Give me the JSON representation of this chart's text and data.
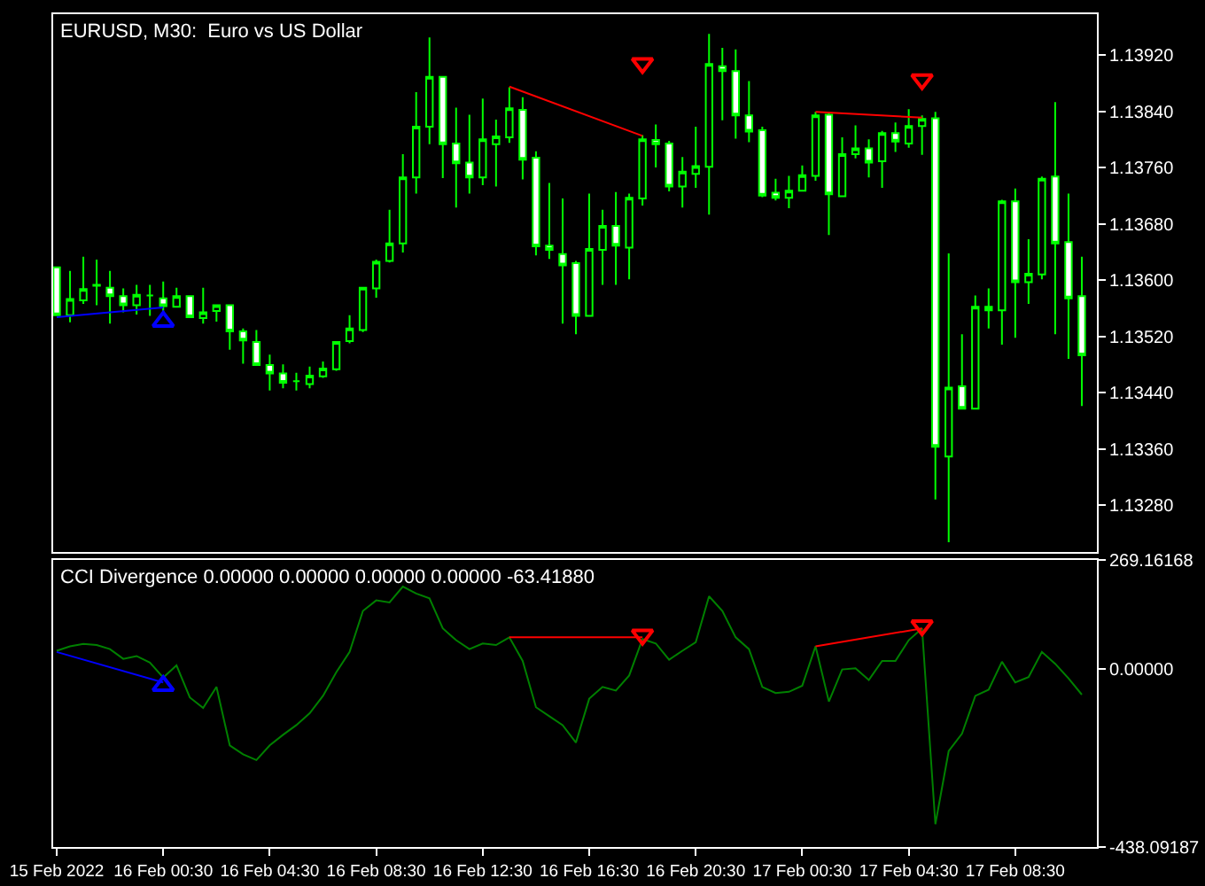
{
  "chart_data": [
    {
      "type": "candlestick",
      "title": "EURUSD, M30:  Euro vs US Dollar",
      "x": [
        "2022-02-15T20:30",
        "2022-02-15T21:00",
        "2022-02-15T21:30",
        "2022-02-15T22:00",
        "2022-02-15T22:30",
        "2022-02-15T23:00",
        "2022-02-15T23:30",
        "2022-02-16T00:00",
        "2022-02-16T00:30",
        "2022-02-16T01:00",
        "2022-02-16T01:30",
        "2022-02-16T02:00",
        "2022-02-16T02:30",
        "2022-02-16T03:00",
        "2022-02-16T03:30",
        "2022-02-16T04:00",
        "2022-02-16T04:30",
        "2022-02-16T05:00",
        "2022-02-16T05:30",
        "2022-02-16T06:00",
        "2022-02-16T06:30",
        "2022-02-16T07:00",
        "2022-02-16T07:30",
        "2022-02-16T08:00",
        "2022-02-16T08:30",
        "2022-02-16T09:00",
        "2022-02-16T09:30",
        "2022-02-16T10:00",
        "2022-02-16T10:30",
        "2022-02-16T11:00",
        "2022-02-16T11:30",
        "2022-02-16T12:00",
        "2022-02-16T12:30",
        "2022-02-16T13:00",
        "2022-02-16T13:30",
        "2022-02-16T14:00",
        "2022-02-16T14:30",
        "2022-02-16T15:00",
        "2022-02-16T15:30",
        "2022-02-16T16:00",
        "2022-02-16T16:30",
        "2022-02-16T17:00",
        "2022-02-16T17:30",
        "2022-02-16T18:00",
        "2022-02-16T18:30",
        "2022-02-16T19:00",
        "2022-02-16T19:30",
        "2022-02-16T20:00",
        "2022-02-16T20:30",
        "2022-02-16T21:00",
        "2022-02-16T21:30",
        "2022-02-16T22:00",
        "2022-02-16T22:30",
        "2022-02-16T23:00",
        "2022-02-16T23:30",
        "2022-02-17T00:00",
        "2022-02-17T00:30",
        "2022-02-17T01:00",
        "2022-02-17T01:30",
        "2022-02-17T02:00",
        "2022-02-17T02:30",
        "2022-02-17T03:00",
        "2022-02-17T03:30",
        "2022-02-17T04:00",
        "2022-02-17T04:30",
        "2022-02-17T05:00",
        "2022-02-17T05:30",
        "2022-02-17T06:00",
        "2022-02-17T06:30",
        "2022-02-17T07:00",
        "2022-02-17T07:30",
        "2022-02-17T08:00",
        "2022-02-17T08:30",
        "2022-02-17T09:00",
        "2022-02-17T09:30",
        "2022-02-17T10:00",
        "2022-02-17T10:30",
        "2022-02-17T11:00"
      ],
      "series": [
        {
          "color": "#00ff00",
          "ohlc": [
            [
              1.13618,
              1.13618,
              1.1355,
              1.1355
            ],
            [
              1.1355,
              1.13613,
              1.1354,
              1.13573
            ],
            [
              1.13571,
              1.13633,
              1.13566,
              1.13587
            ],
            [
              1.13592,
              1.13629,
              1.13564,
              1.13593
            ],
            [
              1.13589,
              1.13613,
              1.13538,
              1.13577
            ],
            [
              1.13577,
              1.13588,
              1.13554,
              1.13564
            ],
            [
              1.13564,
              1.13593,
              1.13551,
              1.13579
            ],
            [
              1.13578,
              1.13593,
              1.13549,
              1.13578
            ],
            [
              1.13574,
              1.13598,
              1.13551,
              1.13563
            ],
            [
              1.13562,
              1.13589,
              1.13561,
              1.13577
            ],
            [
              1.13577,
              1.13578,
              1.13546,
              1.13547
            ],
            [
              1.13546,
              1.13589,
              1.13538,
              1.13554
            ],
            [
              1.13556,
              1.13564,
              1.13541,
              1.13564
            ],
            [
              1.13564,
              1.13564,
              1.13501,
              1.13527
            ],
            [
              1.13527,
              1.13531,
              1.13481,
              1.13514
            ],
            [
              1.13512,
              1.13529,
              1.13479,
              1.13479
            ],
            [
              1.13479,
              1.13494,
              1.13443,
              1.13467
            ],
            [
              1.13467,
              1.1348,
              1.13446,
              1.13454
            ],
            [
              1.13456,
              1.13468,
              1.13443,
              1.13456
            ],
            [
              1.13452,
              1.13477,
              1.13446,
              1.13464
            ],
            [
              1.13463,
              1.13484,
              1.13461,
              1.13474
            ],
            [
              1.13473,
              1.13512,
              1.13471,
              1.13512
            ],
            [
              1.13513,
              1.1355,
              1.1351,
              1.13531
            ],
            [
              1.13529,
              1.13589,
              1.13526,
              1.13589
            ],
            [
              1.13588,
              1.13629,
              1.13575,
              1.13626
            ],
            [
              1.13627,
              1.137,
              1.13625,
              1.13652
            ],
            [
              1.13652,
              1.13779,
              1.13639,
              1.13746
            ],
            [
              1.13746,
              1.13867,
              1.13723,
              1.13818
            ],
            [
              1.13818,
              1.13945,
              1.13793,
              1.13889
            ],
            [
              1.13889,
              1.13889,
              1.13745,
              1.13793
            ],
            [
              1.13794,
              1.13845,
              1.13703,
              1.13766
            ],
            [
              1.13767,
              1.13835,
              1.13723,
              1.13746
            ],
            [
              1.13746,
              1.13858,
              1.13735,
              1.138
            ],
            [
              1.13793,
              1.13828,
              1.13733,
              1.13804
            ],
            [
              1.13803,
              1.13874,
              1.13795,
              1.13844
            ],
            [
              1.13842,
              1.1386,
              1.13743,
              1.13771
            ],
            [
              1.13774,
              1.13783,
              1.13635,
              1.13648
            ],
            [
              1.13649,
              1.13738,
              1.1363,
              1.13643
            ],
            [
              1.13637,
              1.13716,
              1.13538,
              1.13621
            ],
            [
              1.13624,
              1.13627,
              1.13523,
              1.13549
            ],
            [
              1.13549,
              1.13723,
              1.13549,
              1.13644
            ],
            [
              1.13643,
              1.137,
              1.13593,
              1.13677
            ],
            [
              1.13677,
              1.13725,
              1.13593,
              1.13649
            ],
            [
              1.13646,
              1.13723,
              1.13601,
              1.13717
            ],
            [
              1.13716,
              1.13806,
              1.13706,
              1.138
            ],
            [
              1.13799,
              1.13821,
              1.1376,
              1.13793
            ],
            [
              1.13794,
              1.13798,
              1.13726,
              1.13733
            ],
            [
              1.13733,
              1.13775,
              1.13703,
              1.13754
            ],
            [
              1.13751,
              1.13818,
              1.13731,
              1.13762
            ],
            [
              1.13761,
              1.1395,
              1.13693,
              1.13907
            ],
            [
              1.13904,
              1.1393,
              1.13827,
              1.13897
            ],
            [
              1.13897,
              1.13928,
              1.13801,
              1.13834
            ],
            [
              1.13834,
              1.13883,
              1.13796,
              1.13811
            ],
            [
              1.13813,
              1.13818,
              1.13718,
              1.1372
            ],
            [
              1.13724,
              1.13744,
              1.13713,
              1.13717
            ],
            [
              1.13717,
              1.13748,
              1.13702,
              1.13727
            ],
            [
              1.13727,
              1.13763,
              1.13727,
              1.13749
            ],
            [
              1.13748,
              1.13839,
              1.13741,
              1.13834
            ],
            [
              1.13835,
              1.13838,
              1.13664,
              1.13722
            ],
            [
              1.13719,
              1.13803,
              1.13719,
              1.13779
            ],
            [
              1.13779,
              1.1382,
              1.13773,
              1.13787
            ],
            [
              1.13787,
              1.138,
              1.13746,
              1.13767
            ],
            [
              1.13769,
              1.13812,
              1.13731,
              1.13809
            ],
            [
              1.13809,
              1.13824,
              1.13782,
              1.13797
            ],
            [
              1.13794,
              1.13843,
              1.13788,
              1.13819
            ],
            [
              1.13819,
              1.13834,
              1.13778,
              1.13829
            ],
            [
              1.1383,
              1.13839,
              1.13288,
              1.13363
            ],
            [
              1.13349,
              1.13638,
              1.13227,
              1.13447
            ],
            [
              1.13449,
              1.13523,
              1.13417,
              1.13417
            ],
            [
              1.13417,
              1.13578,
              1.13417,
              1.13562
            ],
            [
              1.13562,
              1.13588,
              1.13531,
              1.13557
            ],
            [
              1.13557,
              1.13714,
              1.13508,
              1.13712
            ],
            [
              1.13712,
              1.1373,
              1.13518,
              1.13597
            ],
            [
              1.13597,
              1.13658,
              1.13566,
              1.13609
            ],
            [
              1.13608,
              1.13747,
              1.13601,
              1.13744
            ],
            [
              1.13747,
              1.13853,
              1.13523,
              1.13652
            ],
            [
              1.13654,
              1.13723,
              1.13488,
              1.13574
            ],
            [
              1.13577,
              1.13633,
              1.13421,
              1.13493
            ]
          ]
        },
        {
          "type": "line",
          "color": "#0000ff",
          "x": [
            "2022-02-15T20:30",
            "2022-02-16T00:30"
          ],
          "values": [
            1.13547,
            1.13561
          ]
        },
        {
          "type": "scatter",
          "marker": "triangle",
          "color": "#0000ff",
          "x": [
            "2022-02-16T00:30"
          ],
          "values": [
            1.13541
          ]
        },
        {
          "type": "line",
          "color": "#ff0000",
          "x": [
            "2022-02-16T13:30",
            "2022-02-16T18:30"
          ],
          "values": [
            1.13875,
            1.13805
          ]
        },
        {
          "type": "scatter",
          "marker": "triangle",
          "color": "#ff0000",
          "x": [
            "2022-02-16T18:30"
          ],
          "values": [
            1.13908
          ]
        },
        {
          "type": "line",
          "color": "#ff0000",
          "x": [
            "2022-02-17T01:00",
            "2022-02-17T05:00"
          ],
          "values": [
            1.13839,
            1.13831
          ]
        },
        {
          "type": "scatter",
          "marker": "triangle",
          "color": "#ff0000",
          "x": [
            "2022-02-17T05:00"
          ],
          "values": [
            1.13885
          ]
        }
      ],
      "tick_labels": "y",
      "xlim": [
        "2022-02-15T20:22",
        "2022-02-17T11:34"
      ],
      "ylim": [
        1.13213,
        1.13978
      ],
      "yticks": [
        {
          "value": 1.1328,
          "label": "1.13280"
        },
        {
          "value": 1.1336,
          "label": "1.13360"
        },
        {
          "value": 1.1344,
          "label": "1.13440"
        },
        {
          "value": 1.1352,
          "label": "1.13520"
        },
        {
          "value": 1.136,
          "label": "1.13600"
        },
        {
          "value": 1.1368,
          "label": "1.13680"
        },
        {
          "value": 1.1376,
          "label": "1.13760"
        },
        {
          "value": 1.1384,
          "label": "1.13840"
        },
        {
          "value": 1.1392,
          "label": "1.13920"
        }
      ]
    },
    {
      "type": "line",
      "title": "CCI Divergence 0.00000 0.00000 0.00000 0.00000 -63.41880",
      "x": [
        "2022-02-15T20:30",
        "2022-02-15T21:00",
        "2022-02-15T21:30",
        "2022-02-15T22:00",
        "2022-02-15T22:30",
        "2022-02-15T23:00",
        "2022-02-15T23:30",
        "2022-02-16T00:00",
        "2022-02-16T00:30",
        "2022-02-16T01:00",
        "2022-02-16T01:30",
        "2022-02-16T02:00",
        "2022-02-16T02:30",
        "2022-02-16T03:00",
        "2022-02-16T03:30",
        "2022-02-16T04:00",
        "2022-02-16T04:30",
        "2022-02-16T05:00",
        "2022-02-16T05:30",
        "2022-02-16T06:00",
        "2022-02-16T06:30",
        "2022-02-16T07:00",
        "2022-02-16T07:30",
        "2022-02-16T08:00",
        "2022-02-16T08:30",
        "2022-02-16T09:00",
        "2022-02-16T09:30",
        "2022-02-16T10:00",
        "2022-02-16T10:30",
        "2022-02-16T11:00",
        "2022-02-16T11:30",
        "2022-02-16T12:00",
        "2022-02-16T12:30",
        "2022-02-16T13:00",
        "2022-02-16T13:30",
        "2022-02-16T14:00",
        "2022-02-16T14:30",
        "2022-02-16T15:00",
        "2022-02-16T15:30",
        "2022-02-16T16:00",
        "2022-02-16T16:30",
        "2022-02-16T17:00",
        "2022-02-16T17:30",
        "2022-02-16T18:00",
        "2022-02-16T18:30",
        "2022-02-16T19:00",
        "2022-02-16T19:30",
        "2022-02-16T20:00",
        "2022-02-16T20:30",
        "2022-02-16T21:00",
        "2022-02-16T21:30",
        "2022-02-16T22:00",
        "2022-02-16T22:30",
        "2022-02-16T23:00",
        "2022-02-16T23:30",
        "2022-02-17T00:00",
        "2022-02-17T00:30",
        "2022-02-17T01:00",
        "2022-02-17T01:30",
        "2022-02-17T02:00",
        "2022-02-17T02:30",
        "2022-02-17T03:00",
        "2022-02-17T03:30",
        "2022-02-17T04:00",
        "2022-02-17T04:30",
        "2022-02-17T05:00",
        "2022-02-17T05:30",
        "2022-02-17T06:00",
        "2022-02-17T06:30",
        "2022-02-17T07:00",
        "2022-02-17T07:30",
        "2022-02-17T08:00",
        "2022-02-17T08:30",
        "2022-02-17T09:00",
        "2022-02-17T09:30",
        "2022-02-17T10:00",
        "2022-02-17T10:30",
        "2022-02-17T11:00"
      ],
      "series": [
        {
          "color": "#008000",
          "values": [
            45,
            56,
            62,
            59,
            49,
            25,
            32,
            16,
            -21,
            9,
            -70,
            -96,
            -44,
            -188,
            -210,
            -224,
            -188,
            -162,
            -138,
            -109,
            -66,
            -8,
            42,
            143,
            169,
            164,
            203,
            186,
            174,
            100,
            71,
            49,
            63,
            59,
            78,
            20,
            -94,
            -116,
            -138,
            -181,
            -73,
            -44,
            -53,
            -16,
            74,
            63,
            23,
            45,
            66,
            179,
            143,
            78,
            49,
            -44,
            -59,
            -56,
            -41,
            56,
            -80,
            -1,
            2,
            -27,
            20,
            20,
            71,
            100,
            -382,
            -202,
            -159,
            -66,
            -51,
            18,
            -33,
            -20,
            42,
            13,
            -23,
            -63
          ]
        },
        {
          "type": "line",
          "color": "#0000ff",
          "x": [
            "2022-02-15T20:30",
            "2022-02-16T00:30"
          ],
          "values": [
            42,
            -33
          ]
        },
        {
          "type": "scatter",
          "marker": "triangle",
          "color": "#0000ff",
          "x": [
            "2022-02-16T00:30"
          ],
          "values": [
            -41
          ]
        },
        {
          "type": "line",
          "color": "#ff0000",
          "x": [
            "2022-02-16T13:30",
            "2022-02-16T18:30"
          ],
          "values": [
            78,
            78
          ]
        },
        {
          "type": "scatter",
          "marker": "triangle",
          "color": "#ff0000",
          "x": [
            "2022-02-16T18:30"
          ],
          "values": [
            84
          ]
        },
        {
          "type": "line",
          "color": "#ff0000",
          "x": [
            "2022-02-17T01:00",
            "2022-02-17T05:00"
          ],
          "values": [
            56,
            100
          ]
        },
        {
          "type": "scatter",
          "marker": "triangle",
          "color": "#ff0000",
          "x": [
            "2022-02-17T05:00"
          ],
          "values": [
            107
          ]
        }
      ],
      "xlim": [
        "2022-02-15T20:22",
        "2022-02-17T11:34"
      ],
      "xticks": [
        {
          "value": "2022-02-15T20:30",
          "label": "15 Feb 2022"
        },
        {
          "value": "2022-02-16T00:30",
          "label": "16 Feb 00:30"
        },
        {
          "value": "2022-02-16T04:30",
          "label": "16 Feb 04:30"
        },
        {
          "value": "2022-02-16T08:30",
          "label": "16 Feb 08:30"
        },
        {
          "value": "2022-02-16T12:30",
          "label": "16 Feb 12:30"
        },
        {
          "value": "2022-02-16T16:30",
          "label": "16 Feb 16:30"
        },
        {
          "value": "2022-02-16T20:30",
          "label": "16 Feb 20:30"
        },
        {
          "value": "2022-02-17T00:30",
          "label": "17 Feb 00:30"
        },
        {
          "value": "2022-02-17T04:30",
          "label": "17 Feb 04:30"
        },
        {
          "value": "2022-02-17T08:30",
          "label": "17 Feb 08:30"
        }
      ],
      "ylim": [
        -438.09187,
        269.16168
      ],
      "yticks": [
        -438.09187,
        {
          "value": 0,
          "label": "0.00000"
        },
        269.16168
      ]
    }
  ]
}
